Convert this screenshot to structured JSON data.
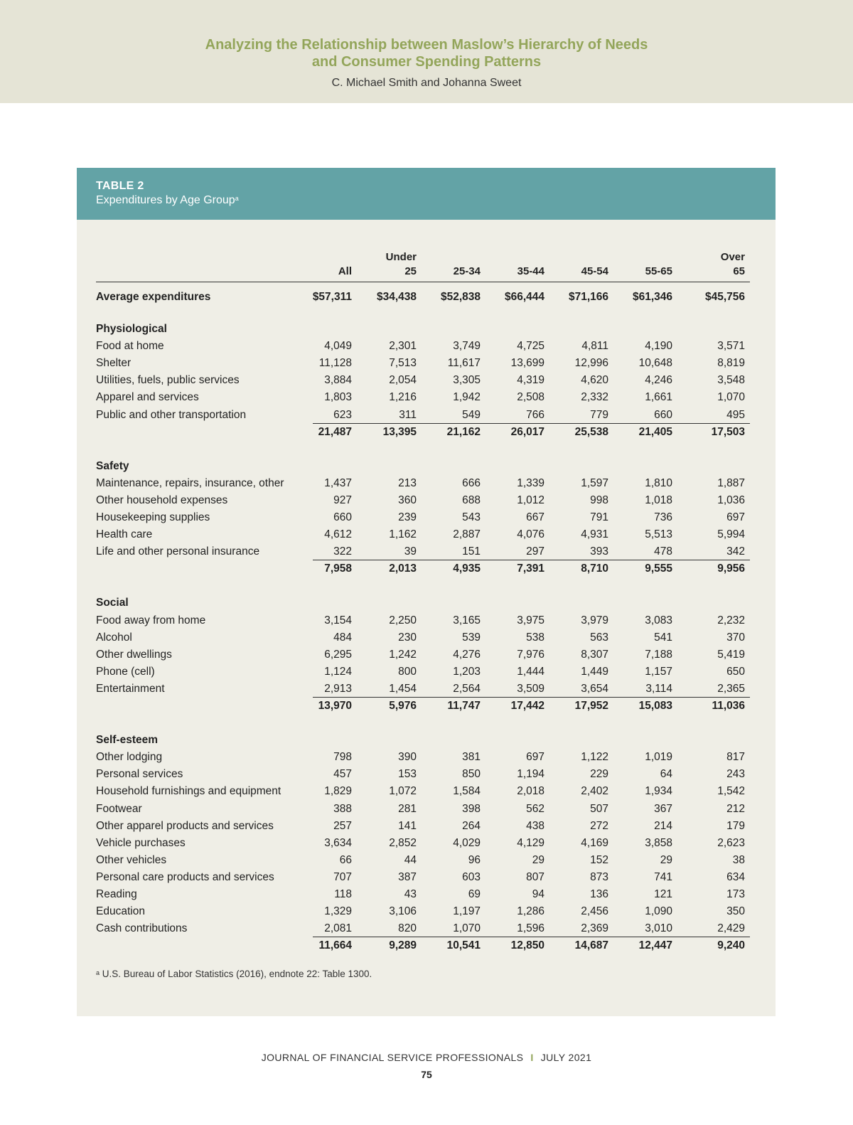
{
  "header": {
    "title_line1": "Analyzing the Relationship between Maslow’s Hierarchy of Needs",
    "title_line2": "and Consumer Spending Patterns",
    "authors": "C. Michael Smith and Johanna Sweet"
  },
  "table": {
    "label": "TABLE 2",
    "caption": "Expenditures by Age Group",
    "caption_note_marker": "a",
    "columns": [
      {
        "line1": "",
        "line2": "All"
      },
      {
        "line1": "Under",
        "line2": "25"
      },
      {
        "line1": "",
        "line2": "25-34"
      },
      {
        "line1": "",
        "line2": "35-44"
      },
      {
        "line1": "",
        "line2": "45-54"
      },
      {
        "line1": "",
        "line2": "55-65"
      },
      {
        "line1": "Over",
        "line2": "65"
      }
    ],
    "average": {
      "label": "Average expenditures",
      "values": [
        "$57,311",
        "$34,438",
        "$52,838",
        "$66,444",
        "$71,166",
        "$61,346",
        "$45,756"
      ]
    },
    "sections": [
      {
        "title": "Physiological",
        "rows": [
          {
            "label": "Food at home",
            "values": [
              "4,049",
              "2,301",
              "3,749",
              "4,725",
              "4,811",
              "4,190",
              "3,571"
            ]
          },
          {
            "label": "Shelter",
            "values": [
              "11,128",
              "7,513",
              "11,617",
              "13,699",
              "12,996",
              "10,648",
              "8,819"
            ]
          },
          {
            "label": "Utilities, fuels, public services",
            "values": [
              "3,884",
              "2,054",
              "3,305",
              "4,319",
              "4,620",
              "4,246",
              "3,548"
            ]
          },
          {
            "label": "Apparel and services",
            "values": [
              "1,803",
              "1,216",
              "1,942",
              "2,508",
              "2,332",
              "1,661",
              "1,070"
            ]
          },
          {
            "label": "Public and other transportation",
            "values": [
              "623",
              "311",
              "549",
              "766",
              "779",
              "660",
              "495"
            ]
          }
        ],
        "totals": [
          "21,487",
          "13,395",
          "21,162",
          "26,017",
          "25,538",
          "21,405",
          "17,503"
        ]
      },
      {
        "title": "Safety",
        "rows": [
          {
            "label": "Maintenance, repairs, insurance, other",
            "values": [
              "1,437",
              "213",
              "666",
              "1,339",
              "1,597",
              "1,810",
              "1,887"
            ]
          },
          {
            "label": "Other household expenses",
            "values": [
              "927",
              "360",
              "688",
              "1,012",
              "998",
              "1,018",
              "1,036"
            ]
          },
          {
            "label": "Housekeeping supplies",
            "values": [
              "660",
              "239",
              "543",
              "667",
              "791",
              "736",
              "697"
            ]
          },
          {
            "label": "Health care",
            "values": [
              "4,612",
              "1,162",
              "2,887",
              "4,076",
              "4,931",
              "5,513",
              "5,994"
            ]
          },
          {
            "label": "Life and other personal insurance",
            "values": [
              "322",
              "39",
              "151",
              "297",
              "393",
              "478",
              "342"
            ]
          }
        ],
        "totals": [
          "7,958",
          "2,013",
          "4,935",
          "7,391",
          "8,710",
          "9,555",
          "9,956"
        ]
      },
      {
        "title": "Social",
        "rows": [
          {
            "label": "Food away from home",
            "values": [
              "3,154",
              "2,250",
              "3,165",
              "3,975",
              "3,979",
              "3,083",
              "2,232"
            ]
          },
          {
            "label": "Alcohol",
            "values": [
              "484",
              "230",
              "539",
              "538",
              "563",
              "541",
              "370"
            ]
          },
          {
            "label": "Other dwellings",
            "values": [
              "6,295",
              "1,242",
              "4,276",
              "7,976",
              "8,307",
              "7,188",
              "5,419"
            ]
          },
          {
            "label": "Phone (cell)",
            "values": [
              "1,124",
              "800",
              "1,203",
              "1,444",
              "1,449",
              "1,157",
              "650"
            ]
          },
          {
            "label": "Entertainment",
            "values": [
              "2,913",
              "1,454",
              "2,564",
              "3,509",
              "3,654",
              "3,114",
              "2,365"
            ]
          }
        ],
        "totals": [
          "13,970",
          "5,976",
          "11,747",
          "17,442",
          "17,952",
          "15,083",
          "11,036"
        ]
      },
      {
        "title": "Self-esteem",
        "rows": [
          {
            "label": "Other lodging",
            "values": [
              "798",
              "390",
              "381",
              "697",
              "1,122",
              "1,019",
              "817"
            ]
          },
          {
            "label": "Personal services",
            "values": [
              "457",
              "153",
              "850",
              "1,194",
              "229",
              "64",
              "243"
            ]
          },
          {
            "label": "Household furnishings and equipment",
            "values": [
              "1,829",
              "1,072",
              "1,584",
              "2,018",
              "2,402",
              "1,934",
              "1,542"
            ]
          },
          {
            "label": "Footwear",
            "values": [
              "388",
              "281",
              "398",
              "562",
              "507",
              "367",
              "212"
            ]
          },
          {
            "label": "Other apparel products and services",
            "values": [
              "257",
              "141",
              "264",
              "438",
              "272",
              "214",
              "179"
            ]
          },
          {
            "label": "Vehicle purchases",
            "values": [
              "3,634",
              "2,852",
              "4,029",
              "4,129",
              "4,169",
              "3,858",
              "2,623"
            ]
          },
          {
            "label": "Other vehicles",
            "values": [
              "66",
              "44",
              "96",
              "29",
              "152",
              "29",
              "38"
            ]
          },
          {
            "label": "Personal care products and services",
            "values": [
              "707",
              "387",
              "603",
              "807",
              "873",
              "741",
              "634"
            ]
          },
          {
            "label": "Reading",
            "values": [
              "118",
              "43",
              "69",
              "94",
              "136",
              "121",
              "173"
            ]
          },
          {
            "label": "Education",
            "values": [
              "1,329",
              "3,106",
              "1,197",
              "1,286",
              "2,456",
              "1,090",
              "350"
            ]
          },
          {
            "label": "Cash contributions",
            "values": [
              "2,081",
              "820",
              "1,070",
              "1,596",
              "2,369",
              "3,010",
              "2,429"
            ]
          }
        ],
        "totals": [
          "11,664",
          "9,289",
          "10,541",
          "12,850",
          "14,687",
          "12,447",
          "9,240"
        ]
      }
    ],
    "footnote_marker": "a",
    "footnote": "U.S. Bureau of Labor Statistics (2016), endnote 22: Table 1300."
  },
  "footer": {
    "journal": "JOURNAL OF FINANCIAL SERVICE PROFESSIONALS",
    "separator": "I",
    "issue": "JULY 2021",
    "page": "75"
  }
}
